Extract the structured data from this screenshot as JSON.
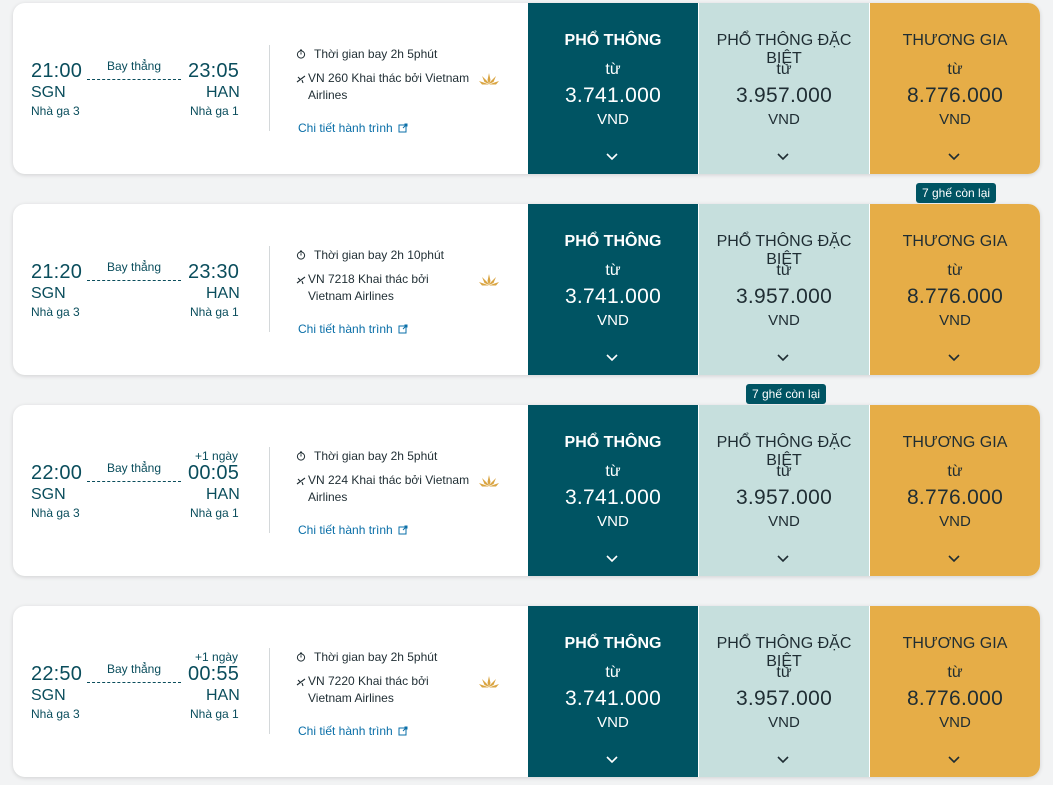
{
  "labels": {
    "direct": "Bay thẳng",
    "details": "Chi tiết hành trình",
    "from": "từ",
    "currency": "VND",
    "fares": [
      "PHỔ THÔNG",
      "PHỔ THÔNG ĐẶC BIỆT",
      "THƯƠNG GIA"
    ]
  },
  "colors": {
    "economy": "#005463",
    "premium_economy": "#c6dfdd",
    "business": "#e6ad47",
    "text_primary": "#0a4d5c",
    "link": "#0a6fa8"
  },
  "flights": [
    {
      "dep_time": "21:00",
      "dep_code": "SGN",
      "dep_terminal": "Nhà ga 3",
      "arr_time": "23:05",
      "arr_code": "HAN",
      "arr_terminal": "Nhà ga 1",
      "next_day": "",
      "duration": "Thời gian bay 2h 5phút",
      "flight": "VN 260 Khai thác bởi Vietnam Airlines",
      "prices": [
        "3.741.000",
        "3.957.000",
        "8.776.000"
      ],
      "seats_badge": "",
      "seats_fare": null
    },
    {
      "dep_time": "21:20",
      "dep_code": "SGN",
      "dep_terminal": "Nhà ga 3",
      "arr_time": "23:30",
      "arr_code": "HAN",
      "arr_terminal": "Nhà ga 1",
      "next_day": "",
      "duration": "Thời gian bay 2h 10phút",
      "flight": "VN 7218 Khai thác bởi Vietnam Airlines",
      "prices": [
        "3.741.000",
        "3.957.000",
        "8.776.000"
      ],
      "seats_badge": "7 ghế còn lại",
      "seats_fare": 2
    },
    {
      "dep_time": "22:00",
      "dep_code": "SGN",
      "dep_terminal": "Nhà ga 3",
      "arr_time": "00:05",
      "arr_code": "HAN",
      "arr_terminal": "Nhà ga 1",
      "next_day": "+1 ngày",
      "duration": "Thời gian bay 2h 5phút",
      "flight": "VN 224 Khai thác bởi Vietnam Airlines",
      "prices": [
        "3.741.000",
        "3.957.000",
        "8.776.000"
      ],
      "seats_badge": "7 ghế còn lại",
      "seats_fare": 1
    },
    {
      "dep_time": "22:50",
      "dep_code": "SGN",
      "dep_terminal": "Nhà ga 3",
      "arr_time": "00:55",
      "arr_code": "HAN",
      "arr_terminal": "Nhà ga 1",
      "next_day": "+1 ngày",
      "duration": "Thời gian bay 2h 5phút",
      "flight": "VN 7220 Khai thác bởi Vietnam Airlines",
      "prices": [
        "3.741.000",
        "3.957.000",
        "8.776.000"
      ],
      "seats_badge": "",
      "seats_fare": null
    }
  ]
}
